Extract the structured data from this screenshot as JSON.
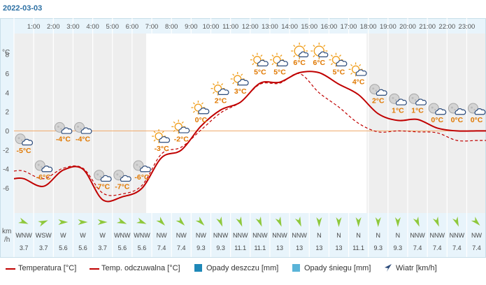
{
  "date": "2022-03-03",
  "hours": [
    "1:00",
    "2:00",
    "3:00",
    "4:00",
    "5:00",
    "6:00",
    "7:00",
    "8:00",
    "9:00",
    "10:00",
    "11:00",
    "12:00",
    "13:00",
    "14:00",
    "15:00",
    "16:00",
    "17:00",
    "18:00",
    "19:00",
    "20:00",
    "21:00",
    "22:00",
    "23:00"
  ],
  "y_axis": {
    "unit": "°C",
    "ticks": [
      "8",
      "6",
      "4",
      "2",
      "0",
      "-2",
      "-4",
      "-6"
    ]
  },
  "wind_axis": {
    "unit_line1": "km",
    "unit_line2": "/h"
  },
  "temperature_labels": [
    {
      "hour": 0,
      "text": "-5°C",
      "temp": -2.0,
      "icon": "moon-cloud-icon",
      "color": "#e07800"
    },
    {
      "hour": 1,
      "text": "-6°C",
      "temp": -4.8,
      "icon": "moon-cloud-icon",
      "color": "#e07800"
    },
    {
      "hour": 2,
      "text": "-4°C",
      "temp": -0.8,
      "icon": "moon-cloud-icon",
      "color": "#e07800"
    },
    {
      "hour": 3,
      "text": "-4°C",
      "temp": -0.8,
      "icon": "moon-cloud-icon",
      "color": "#e07800"
    },
    {
      "hour": 4,
      "text": "-7°C",
      "temp": -5.8,
      "icon": "moon-cloud-icon",
      "color": "#e07800"
    },
    {
      "hour": 5,
      "text": "-7°C",
      "temp": -5.8,
      "icon": "moon-cloud-icon",
      "color": "#e07800"
    },
    {
      "hour": 6,
      "text": "-6°C",
      "temp": -4.8,
      "icon": "moon-cloud-icon",
      "color": "#e07800"
    },
    {
      "hour": 7,
      "text": "-3°C",
      "temp": -1.8,
      "icon": "sun-cloud-icon",
      "color": "#e07800"
    },
    {
      "hour": 8,
      "text": "-2°C",
      "temp": -0.8,
      "icon": "sun-cloud-icon",
      "color": "#e07800"
    },
    {
      "hour": 9,
      "text": "0°C",
      "temp": 1.2,
      "icon": "sun-cloud-icon",
      "color": "#e07800"
    },
    {
      "hour": 10,
      "text": "2°C",
      "temp": 3.2,
      "icon": "sun-cloud-icon",
      "color": "#e07800"
    },
    {
      "hour": 11,
      "text": "3°C",
      "temp": 4.2,
      "icon": "sun-cloud-icon",
      "color": "#e07800"
    },
    {
      "hour": 12,
      "text": "5°C",
      "temp": 6.2,
      "icon": "sun-cloud-icon",
      "color": "#e07800"
    },
    {
      "hour": 13,
      "text": "5°C",
      "temp": 6.2,
      "icon": "sun-cloud-icon",
      "color": "#e07800"
    },
    {
      "hour": 14,
      "text": "6°C",
      "temp": 7.2,
      "icon": "sun-icon",
      "color": "#e07800"
    },
    {
      "hour": 15,
      "text": "6°C",
      "temp": 7.2,
      "icon": "sun-icon",
      "color": "#e07800"
    },
    {
      "hour": 16,
      "text": "5°C",
      "temp": 6.2,
      "icon": "sun-cloud-icon",
      "color": "#e07800"
    },
    {
      "hour": 17,
      "text": "4°C",
      "temp": 5.2,
      "icon": "sun-cloud-icon",
      "color": "#e07800"
    },
    {
      "hour": 18,
      "text": "2°C",
      "temp": 3.2,
      "icon": "moon-cloud-icon",
      "color": "#e07800"
    },
    {
      "hour": 19,
      "text": "1°C",
      "temp": 2.2,
      "icon": "moon-cloud-icon",
      "color": "#e07800"
    },
    {
      "hour": 20,
      "text": "1°C",
      "temp": 2.2,
      "icon": "moon-cloud-icon",
      "color": "#e07800"
    },
    {
      "hour": 21,
      "text": "0°C",
      "temp": 1.2,
      "icon": "moon-cloud-icon",
      "color": "#e07800"
    },
    {
      "hour": 22,
      "text": "0°C",
      "temp": 1.2,
      "icon": "moon-cloud-icon",
      "color": "#e07800"
    },
    {
      "hour": 23,
      "text": "0°C",
      "temp": 1.2,
      "icon": "moon-cloud-icon",
      "color": "#e07800"
    }
  ],
  "chart_data": {
    "type": "line",
    "x": [
      0,
      1,
      2,
      3,
      4,
      5,
      6,
      7,
      8,
      9,
      10,
      11,
      12,
      13,
      14,
      15,
      16,
      17,
      18,
      19,
      20,
      21,
      22,
      23
    ],
    "ylim": [
      -8.6,
      10.2
    ],
    "series": [
      {
        "name": "Temperatura [°C]",
        "style": "solid",
        "color": "#c00000",
        "values": [
          -5,
          -5.8,
          -4.1,
          -4.0,
          -7.2,
          -6.9,
          -6.0,
          -2.8,
          -2.0,
          0.5,
          2.2,
          3.0,
          5.0,
          5.1,
          6.1,
          6.1,
          4.9,
          3.8,
          1.8,
          1.1,
          1.2,
          0.3,
          0.0,
          0.0
        ]
      },
      {
        "name": "Temp. odczuwalna [°C]",
        "style": "dashed",
        "color": "#c00000",
        "values": [
          -4.2,
          -5.0,
          -3.9,
          -3.9,
          -6.5,
          -6.6,
          -5.7,
          -2.4,
          -1.7,
          0.1,
          1.9,
          3.0,
          4.9,
          5.0,
          6.0,
          4.0,
          2.5,
          0.8,
          -0.1,
          0.0,
          -0.1,
          -0.2,
          -1.0,
          -1.0
        ]
      }
    ],
    "zero_line_color": "#f0a868"
  },
  "wind": [
    {
      "dir": "WNW",
      "speed": "3.7",
      "deg": 292
    },
    {
      "dir": "WSW",
      "speed": "3.7",
      "deg": 248
    },
    {
      "dir": "W",
      "speed": "5.6",
      "deg": 270
    },
    {
      "dir": "W",
      "speed": "5.6",
      "deg": 270
    },
    {
      "dir": "W",
      "speed": "3.7",
      "deg": 270
    },
    {
      "dir": "WNW",
      "speed": "5.6",
      "deg": 292
    },
    {
      "dir": "WNW",
      "speed": "5.6",
      "deg": 292
    },
    {
      "dir": "NW",
      "speed": "7.4",
      "deg": 315
    },
    {
      "dir": "NW",
      "speed": "7.4",
      "deg": 315
    },
    {
      "dir": "NW",
      "speed": "9.3",
      "deg": 315
    },
    {
      "dir": "NNW",
      "speed": "9.3",
      "deg": 338
    },
    {
      "dir": "NNW",
      "speed": "11.1",
      "deg": 338
    },
    {
      "dir": "NNW",
      "speed": "11.1",
      "deg": 338
    },
    {
      "dir": "NNW",
      "speed": "13",
      "deg": 338
    },
    {
      "dir": "NNW",
      "speed": "13",
      "deg": 338
    },
    {
      "dir": "N",
      "speed": "13",
      "deg": 0
    },
    {
      "dir": "N",
      "speed": "13",
      "deg": 0
    },
    {
      "dir": "N",
      "speed": "11.1",
      "deg": 0
    },
    {
      "dir": "N",
      "speed": "9.3",
      "deg": 0
    },
    {
      "dir": "N",
      "speed": "9.3",
      "deg": 0
    },
    {
      "dir": "NNW",
      "speed": "7.4",
      "deg": 338
    },
    {
      "dir": "NNW",
      "speed": "7.4",
      "deg": 338
    },
    {
      "dir": "NNW",
      "speed": "7.4",
      "deg": 338
    },
    {
      "dir": "NW",
      "speed": "7.4",
      "deg": 315
    }
  ],
  "legend": {
    "temperature": "Temperatura [°C]",
    "felt_temperature": "Temp. odczuwalna [°C]",
    "rain": "Opady deszczu [mm]",
    "snow": "Opady śniegu [mm]",
    "wind": "Wiatr [km/h]"
  },
  "colors": {
    "night_band": "#eeeeee",
    "day_band": "#ffffff",
    "header_bg": "#e8f4fb",
    "wind_bg": "#e8f4fb",
    "rain": "#1e88b8",
    "snow": "#5ab4d8",
    "wind_arrow": "#8fc83c",
    "wind_legend_arrow": "#2b4a7a"
  }
}
